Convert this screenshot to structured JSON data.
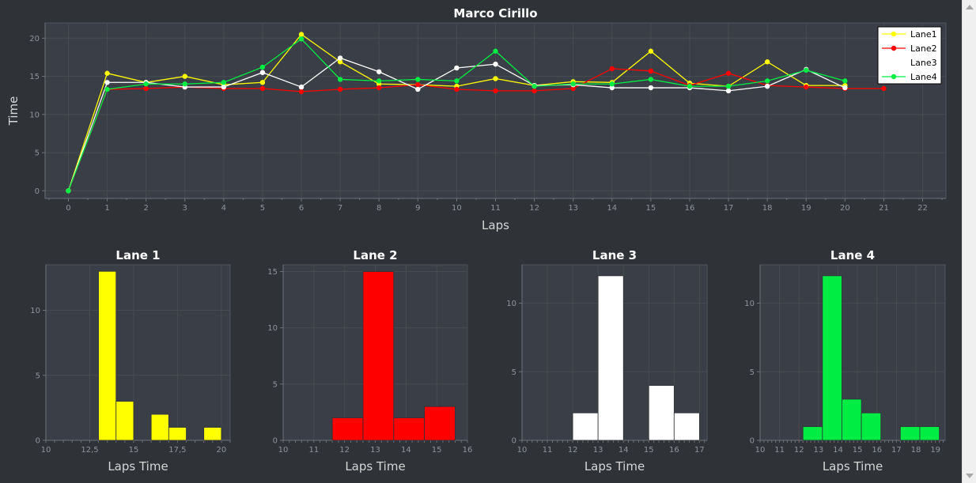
{
  "chart_data": [
    {
      "id": "main",
      "type": "line",
      "title": "Marco Cirillo",
      "xlabel": "Laps",
      "ylabel": "Time",
      "xlim": [
        -0.6,
        22.6
      ],
      "ylim": [
        -1,
        22
      ],
      "xticks": [
        0,
        1,
        2,
        3,
        4,
        5,
        6,
        7,
        8,
        9,
        10,
        11,
        12,
        13,
        14,
        15,
        16,
        17,
        18,
        19,
        20,
        21,
        22
      ],
      "yticks": [
        0,
        5,
        10,
        15,
        20
      ],
      "grid": true,
      "legend_position": "top-right",
      "series": [
        {
          "name": "Lane1",
          "color": "#ffff00",
          "x": [
            0,
            1,
            2,
            3,
            4,
            5,
            6,
            7,
            8,
            9,
            10,
            11,
            12,
            13,
            14,
            15,
            16,
            17,
            18,
            19,
            20
          ],
          "y": [
            0,
            15.4,
            14.2,
            15.0,
            13.9,
            14.2,
            20.5,
            16.9,
            14.0,
            13.9,
            13.7,
            14.7,
            13.8,
            14.3,
            14.2,
            18.3,
            14.1,
            13.7,
            16.9,
            13.8,
            13.8
          ]
        },
        {
          "name": "Lane2",
          "color": "#ff0000",
          "x": [
            0,
            1,
            2,
            3,
            4,
            5,
            6,
            7,
            8,
            9,
            10,
            11,
            12,
            13,
            14,
            15,
            16,
            17,
            18,
            19,
            20,
            21
          ],
          "y": [
            0,
            13.3,
            13.4,
            13.6,
            13.4,
            13.4,
            13.0,
            13.3,
            13.5,
            13.9,
            13.3,
            13.1,
            13.1,
            13.4,
            16.0,
            15.7,
            13.8,
            15.4,
            13.8,
            13.6,
            13.4,
            13.4
          ]
        },
        {
          "name": "Lane3",
          "color": "#ffffff",
          "x": [
            0,
            1,
            2,
            3,
            4,
            5,
            6,
            7,
            8,
            9,
            10,
            11,
            12,
            13,
            14,
            15,
            16,
            17,
            18,
            19,
            20
          ],
          "y": [
            0,
            14.2,
            14.2,
            13.6,
            13.6,
            15.5,
            13.6,
            17.4,
            15.6,
            13.3,
            16.1,
            16.6,
            13.8,
            13.9,
            13.5,
            13.5,
            13.5,
            13.1,
            13.7,
            15.9,
            13.5
          ]
        },
        {
          "name": "Lane4",
          "color": "#00ee44",
          "x": [
            0,
            1,
            2,
            3,
            4,
            5,
            6,
            7,
            8,
            9,
            10,
            11,
            12,
            13,
            14,
            15,
            16,
            17,
            18,
            19,
            20
          ],
          "y": [
            0,
            13.3,
            14.0,
            14.0,
            14.2,
            16.2,
            19.9,
            14.6,
            14.4,
            14.6,
            14.4,
            18.3,
            13.7,
            14.0,
            14.0,
            14.6,
            13.7,
            13.7,
            14.4,
            15.8,
            14.4
          ]
        }
      ]
    },
    {
      "id": "lane1",
      "type": "bar",
      "title": "Lane 1",
      "xlabel": "Laps Time",
      "ylabel": "",
      "color": "#ffff00",
      "xlim": [
        10,
        20.5
      ],
      "ylim": [
        0,
        13.5
      ],
      "xticks": [
        10,
        12.5,
        15,
        17.5,
        20
      ],
      "xtick_labels": [
        "10",
        "12,5",
        "15",
        "17,5",
        "20"
      ],
      "yticks": [
        0,
        5,
        10
      ],
      "bins": [
        {
          "x0": 13,
          "x1": 14,
          "count": 13
        },
        {
          "x0": 14,
          "x1": 15,
          "count": 3
        },
        {
          "x0": 16,
          "x1": 17,
          "count": 2
        },
        {
          "x0": 17,
          "x1": 18,
          "count": 1
        },
        {
          "x0": 19,
          "x1": 20,
          "count": 1
        }
      ]
    },
    {
      "id": "lane2",
      "type": "bar",
      "title": "Lane 2",
      "xlabel": "Laps Time",
      "ylabel": "",
      "color": "#ff0000",
      "xlim": [
        10,
        16
      ],
      "ylim": [
        0,
        15.6
      ],
      "xticks": [
        10,
        11,
        12,
        13,
        14,
        15,
        16
      ],
      "xtick_labels": [
        "10",
        "11",
        "12",
        "13",
        "14",
        "15",
        "16"
      ],
      "yticks": [
        0,
        5,
        10,
        15
      ],
      "bins": [
        {
          "x0": 11.6,
          "x1": 12.6,
          "count": 2
        },
        {
          "x0": 12.6,
          "x1": 13.6,
          "count": 15
        },
        {
          "x0": 13.6,
          "x1": 14.6,
          "count": 2
        },
        {
          "x0": 14.6,
          "x1": 15.6,
          "count": 3
        }
      ]
    },
    {
      "id": "lane3",
      "type": "bar",
      "title": "Lane 3",
      "xlabel": "Laps Time",
      "ylabel": "",
      "color": "#ffffff",
      "xlim": [
        10,
        17.3
      ],
      "ylim": [
        0,
        12.8
      ],
      "xticks": [
        10,
        11,
        12,
        13,
        14,
        15,
        16,
        17
      ],
      "xtick_labels": [
        "10",
        "11",
        "12",
        "13",
        "14",
        "15",
        "16",
        "17"
      ],
      "yticks": [
        0,
        5,
        10
      ],
      "bins": [
        {
          "x0": 12,
          "x1": 13,
          "count": 2
        },
        {
          "x0": 13,
          "x1": 14,
          "count": 12
        },
        {
          "x0": 15,
          "x1": 16,
          "count": 4
        },
        {
          "x0": 16,
          "x1": 17,
          "count": 2
        }
      ]
    },
    {
      "id": "lane4",
      "type": "bar",
      "title": "Lane 4",
      "xlabel": "Laps Time",
      "ylabel": "",
      "color": "#00ee44",
      "xlim": [
        10,
        19.5
      ],
      "ylim": [
        0,
        12.8
      ],
      "xticks": [
        10,
        11,
        12,
        13,
        14,
        15,
        16,
        17,
        18,
        19
      ],
      "xtick_labels": [
        "10",
        "11",
        "12",
        "13",
        "14",
        "15",
        "16",
        "17",
        "18",
        "19"
      ],
      "yticks": [
        0,
        5,
        10
      ],
      "bins": [
        {
          "x0": 12.2,
          "x1": 13.2,
          "count": 1
        },
        {
          "x0": 13.2,
          "x1": 14.2,
          "count": 12
        },
        {
          "x0": 14.2,
          "x1": 15.2,
          "count": 3
        },
        {
          "x0": 15.2,
          "x1": 16.2,
          "count": 2
        },
        {
          "x0": 17.2,
          "x1": 18.2,
          "count": 1
        },
        {
          "x0": 18.2,
          "x1": 19.2,
          "count": 1
        }
      ]
    }
  ]
}
